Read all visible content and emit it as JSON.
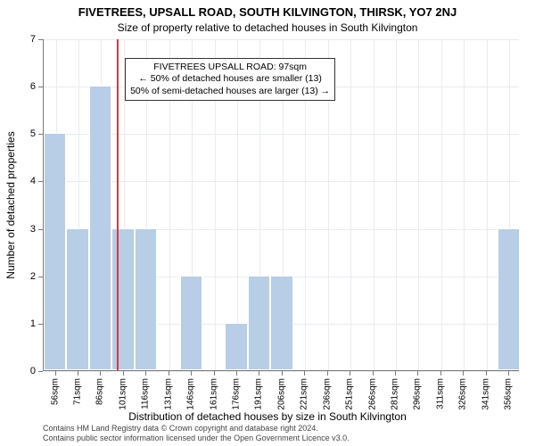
{
  "title": "FIVETREES, UPSALL ROAD, SOUTH KILVINGTON, THIRSK, YO7 2NJ",
  "subtitle": "Size of property relative to detached houses in South Kilvington",
  "ylabel": "Number of detached properties",
  "xlabel": "Distribution of detached houses by size in South Kilvington",
  "footer_line1": "Contains HM Land Registry data © Crown copyright and database right 2024.",
  "footer_line2": "Contains public sector information licensed under the Open Government Licence v3.0.",
  "annotation": {
    "line1": "FIVETREES UPSALL ROAD: 97sqm",
    "line2": "← 50% of detached houses are smaller (13)",
    "line3": "50% of semi-detached houses are larger (13) →"
  },
  "chart": {
    "type": "histogram",
    "x_min": 48,
    "x_max": 363,
    "y_min": 0,
    "y_max": 7,
    "y_ticks": [
      0,
      1,
      2,
      3,
      4,
      5,
      6,
      7
    ],
    "x_ticks": [
      56,
      71,
      86,
      101,
      116,
      131,
      146,
      161,
      176,
      191,
      206,
      221,
      236,
      251,
      266,
      281,
      296,
      311,
      326,
      341,
      356
    ],
    "x_tick_suffix": "sqm",
    "grid_color": "#e8ecf2",
    "axis_color": "#7a7a7a",
    "bar_color": "#b8cde6",
    "bar_border": "#ffffff",
    "refline_color": "#d93b3b",
    "refline_x": 97,
    "background_color": "#ffffff",
    "title_fontsize": 13,
    "subtitle_fontsize": 12,
    "label_fontsize": 12,
    "tick_fontsize": 11,
    "bin_width": 15,
    "bins": [
      {
        "start": 48,
        "count": 5
      },
      {
        "start": 63,
        "count": 3
      },
      {
        "start": 78,
        "count": 6
      },
      {
        "start": 93,
        "count": 3
      },
      {
        "start": 108,
        "count": 3
      },
      {
        "start": 123,
        "count": 0
      },
      {
        "start": 138,
        "count": 2
      },
      {
        "start": 153,
        "count": 0
      },
      {
        "start": 168,
        "count": 1
      },
      {
        "start": 183,
        "count": 2
      },
      {
        "start": 198,
        "count": 2
      },
      {
        "start": 213,
        "count": 0
      },
      {
        "start": 228,
        "count": 0
      },
      {
        "start": 243,
        "count": 0
      },
      {
        "start": 258,
        "count": 0
      },
      {
        "start": 273,
        "count": 0
      },
      {
        "start": 288,
        "count": 0
      },
      {
        "start": 303,
        "count": 0
      },
      {
        "start": 318,
        "count": 0
      },
      {
        "start": 333,
        "count": 0
      },
      {
        "start": 348,
        "count": 3
      }
    ]
  }
}
